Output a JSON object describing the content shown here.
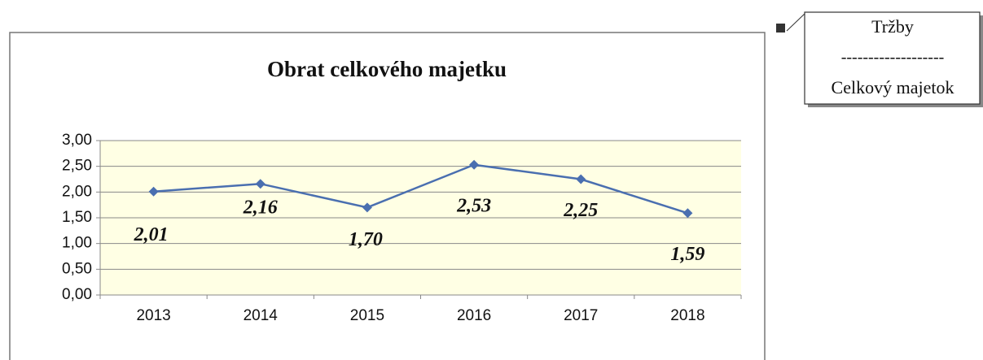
{
  "chart_data": {
    "type": "line",
    "title": "Obrat celkového majetku",
    "categories": [
      "2013",
      "2014",
      "2015",
      "2016",
      "2017",
      "2018"
    ],
    "series": [
      {
        "name": "Obrat celkového majetku",
        "color": "#4a6fb0",
        "values": [
          2.01,
          2.16,
          1.7,
          2.53,
          2.25,
          1.59
        ],
        "value_labels": [
          "2,01",
          "2,16",
          "1,70",
          "2,53",
          "2,25",
          "1,59"
        ]
      }
    ],
    "ylim": [
      0,
      3
    ],
    "yticks": [
      {
        "value": 0,
        "label": "0,00"
      },
      {
        "value": 0.5,
        "label": "0,50"
      },
      {
        "value": 1,
        "label": "1,00"
      },
      {
        "value": 1.5,
        "label": "1,50"
      },
      {
        "value": 2,
        "label": "2,00"
      },
      {
        "value": 2.5,
        "label": "2,50"
      },
      {
        "value": 3,
        "label": "3,00"
      }
    ],
    "grid": true
  },
  "formula": {
    "numerator": "Tržby",
    "separator": "-------------------",
    "denominator": "Celkový majetok"
  }
}
